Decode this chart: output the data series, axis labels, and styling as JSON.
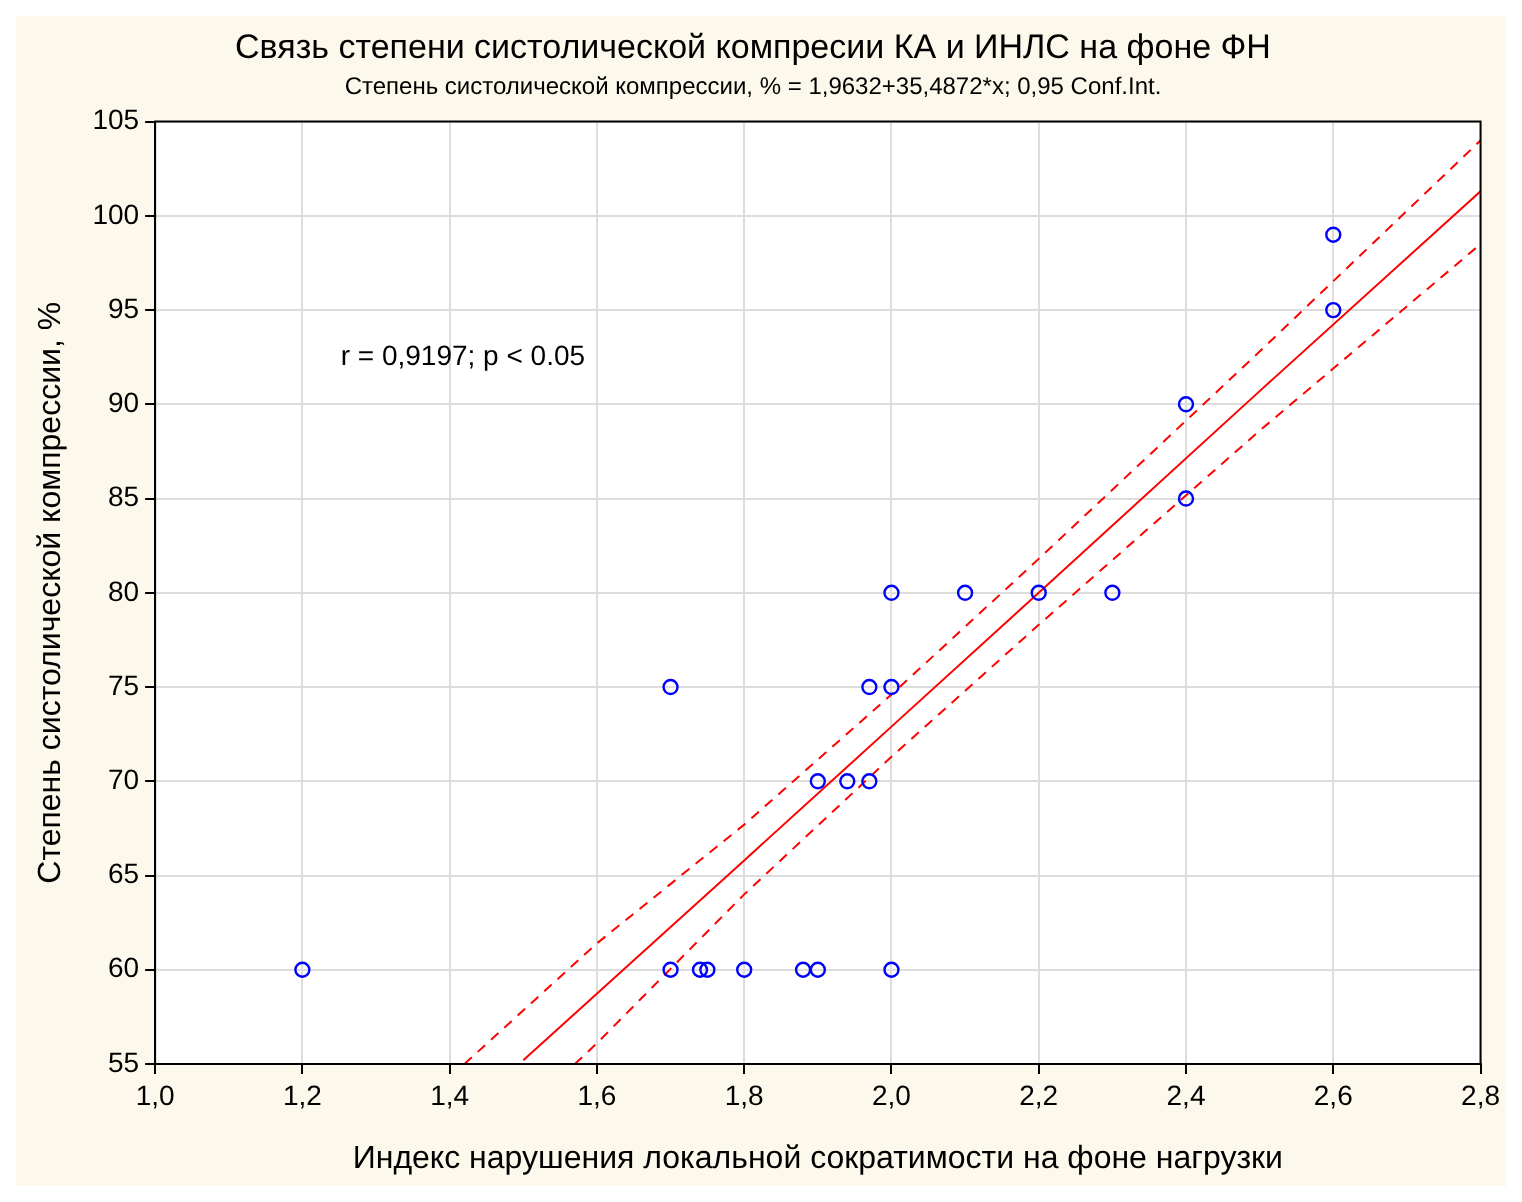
{
  "chart_data": {
    "type": "scatter",
    "title": "Связь степени систолической компресии КА и ИНЛС на фоне ФН",
    "subtitle": "Степень систолической компрессии, % = 1,9632+35,4872*x; 0,95 Conf.Int.",
    "xlabel": "Индекс нарушения локальной сократимости на фоне нагрузки",
    "ylabel": "Степень систолической компрессии, %",
    "annotations": [
      "r = 0,9197; p < 0.05"
    ],
    "xlim": [
      1.0,
      2.8
    ],
    "xticks": [
      {
        "value": 1.0,
        "label": "1,0"
      },
      {
        "value": 1.2,
        "label": "1,2"
      },
      {
        "value": 1.4,
        "label": "1,4"
      },
      {
        "value": 1.6,
        "label": "1,6"
      },
      {
        "value": 1.8,
        "label": "1,8"
      },
      {
        "value": 2.0,
        "label": "2,0"
      },
      {
        "value": 2.2,
        "label": "2,2"
      },
      {
        "value": 2.4,
        "label": "2,4"
      },
      {
        "value": 2.6,
        "label": "2,6"
      },
      {
        "value": 2.8,
        "label": "2,8"
      }
    ],
    "ylim": [
      55,
      105
    ],
    "yticks": [
      55,
      60,
      65,
      70,
      75,
      80,
      85,
      90,
      95,
      100,
      105
    ],
    "grid": true,
    "legend": false,
    "series": [
      {
        "type": "scatter",
        "color": "#0000ff",
        "marker": "circle",
        "x": [
          1.2,
          1.7,
          1.7,
          1.74,
          1.75,
          1.8,
          1.88,
          1.9,
          2.0,
          1.9,
          1.94,
          1.97,
          1.97,
          2.0,
          2.0,
          2.1,
          2.2,
          2.3,
          2.4,
          2.4,
          2.6,
          2.6
        ],
        "values": [
          60,
          75,
          60,
          60,
          60,
          60,
          60,
          60,
          60,
          70,
          70,
          70,
          75,
          75,
          80,
          80,
          80,
          80,
          90,
          85,
          99,
          95
        ]
      },
      {
        "type": "line",
        "color": "#ff0000",
        "marker": "none",
        "line_style": "solid",
        "x": [
          1.5,
          1.8,
          2.0,
          2.2,
          2.5,
          2.8
        ],
        "values": [
          55.2,
          65.8,
          72.9,
          80.0,
          90.7,
          101.3
        ]
      },
      {
        "type": "line",
        "color": "#ff0000",
        "marker": "none",
        "line_style": "dashed",
        "x": [
          1.42,
          1.6,
          1.8,
          2.0,
          2.2,
          2.5,
          2.8
        ],
        "values": [
          55.0,
          61.4,
          67.7,
          74.6,
          81.8,
          92.8,
          104.0
        ]
      },
      {
        "type": "line",
        "color": "#ff0000",
        "marker": "none",
        "line_style": "dashed",
        "x": [
          1.57,
          1.6,
          1.8,
          2.0,
          2.2,
          2.5,
          2.8
        ],
        "values": [
          55.0,
          56.1,
          64.0,
          71.3,
          78.3,
          88.6,
          98.5
        ]
      }
    ]
  }
}
